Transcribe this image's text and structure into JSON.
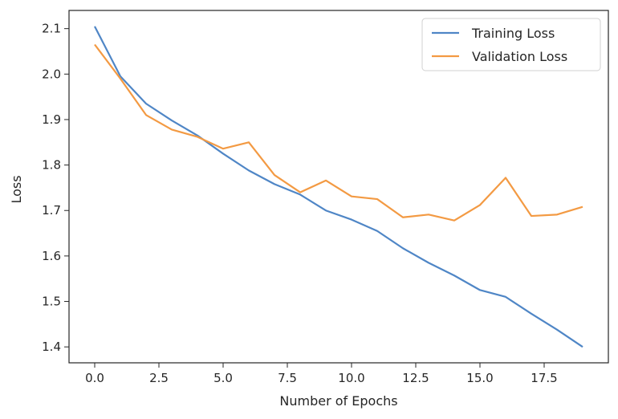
{
  "chart_data": {
    "type": "line",
    "xlabel": "Number of Epochs",
    "ylabel": "Loss",
    "x": [
      0,
      1,
      2,
      3,
      4,
      5,
      6,
      7,
      8,
      9,
      10,
      11,
      12,
      13,
      14,
      15,
      16,
      17,
      18,
      19
    ],
    "series": [
      {
        "name": "Training Loss",
        "color": "#4f86c6",
        "values": [
          2.105,
          1.995,
          1.935,
          1.898,
          1.865,
          1.825,
          1.788,
          1.758,
          1.735,
          1.7,
          1.68,
          1.655,
          1.617,
          1.585,
          1.557,
          1.525,
          1.51,
          1.473,
          1.438,
          1.4
        ]
      },
      {
        "name": "Validation Loss",
        "color": "#f39a43",
        "values": [
          2.065,
          1.99,
          1.91,
          1.878,
          1.862,
          1.836,
          1.85,
          1.778,
          1.74,
          1.766,
          1.731,
          1.725,
          1.685,
          1.691,
          1.678,
          1.712,
          1.772,
          1.688,
          1.691,
          1.708
        ]
      }
    ],
    "xlim": [
      -1.0,
      20.0
    ],
    "ylim": [
      1.365,
      2.14
    ],
    "xticks": [
      "0.0",
      "2.5",
      "5.0",
      "7.5",
      "10.0",
      "12.5",
      "15.0",
      "17.5"
    ],
    "xtick_values": [
      0,
      2.5,
      5,
      7.5,
      10,
      12.5,
      15,
      17.5
    ],
    "yticks": [
      "1.4",
      "1.5",
      "1.6",
      "1.7",
      "1.8",
      "1.9",
      "2.0",
      "2.1"
    ],
    "ytick_values": [
      1.4,
      1.5,
      1.6,
      1.7,
      1.8,
      1.9,
      2.0,
      2.1
    ],
    "grid": false,
    "legend_position": "top-right"
  }
}
